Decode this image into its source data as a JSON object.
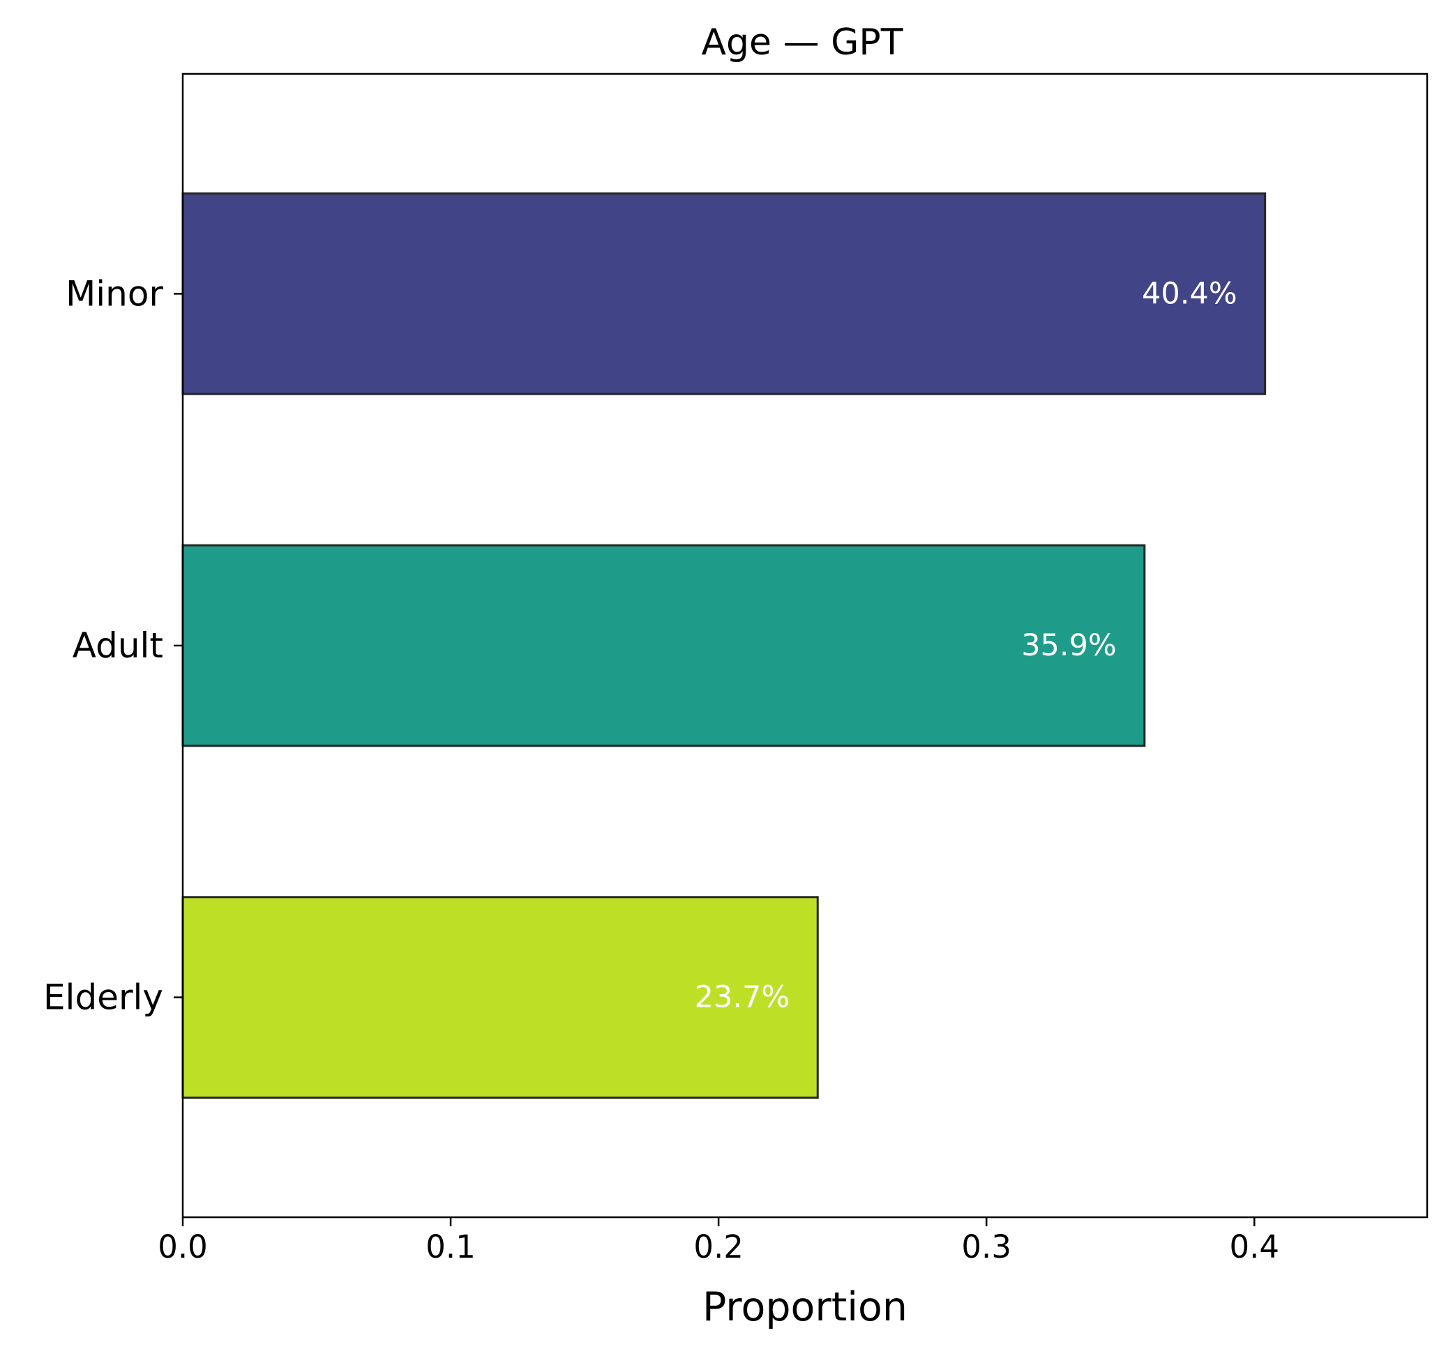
{
  "chart_data": {
    "type": "bar",
    "orientation": "horizontal",
    "title": "Age — GPT",
    "xlabel": "Proportion",
    "ylabel": "",
    "categories": [
      "Minor",
      "Adult",
      "Elderly"
    ],
    "values": [
      0.404,
      0.359,
      0.237
    ],
    "data_labels": [
      "40.4%",
      "35.9%",
      "23.7%"
    ],
    "colors": [
      "#414487",
      "#1f9c89",
      "#bde027"
    ],
    "bar_edge_color": "#262626",
    "xlim": [
      0,
      0.4645
    ],
    "xticks": [
      0.0,
      0.1,
      0.2,
      0.3,
      0.4
    ],
    "xtick_labels": [
      "0.0",
      "0.1",
      "0.2",
      "0.3",
      "0.4"
    ],
    "grid": false,
    "legend": "none"
  }
}
